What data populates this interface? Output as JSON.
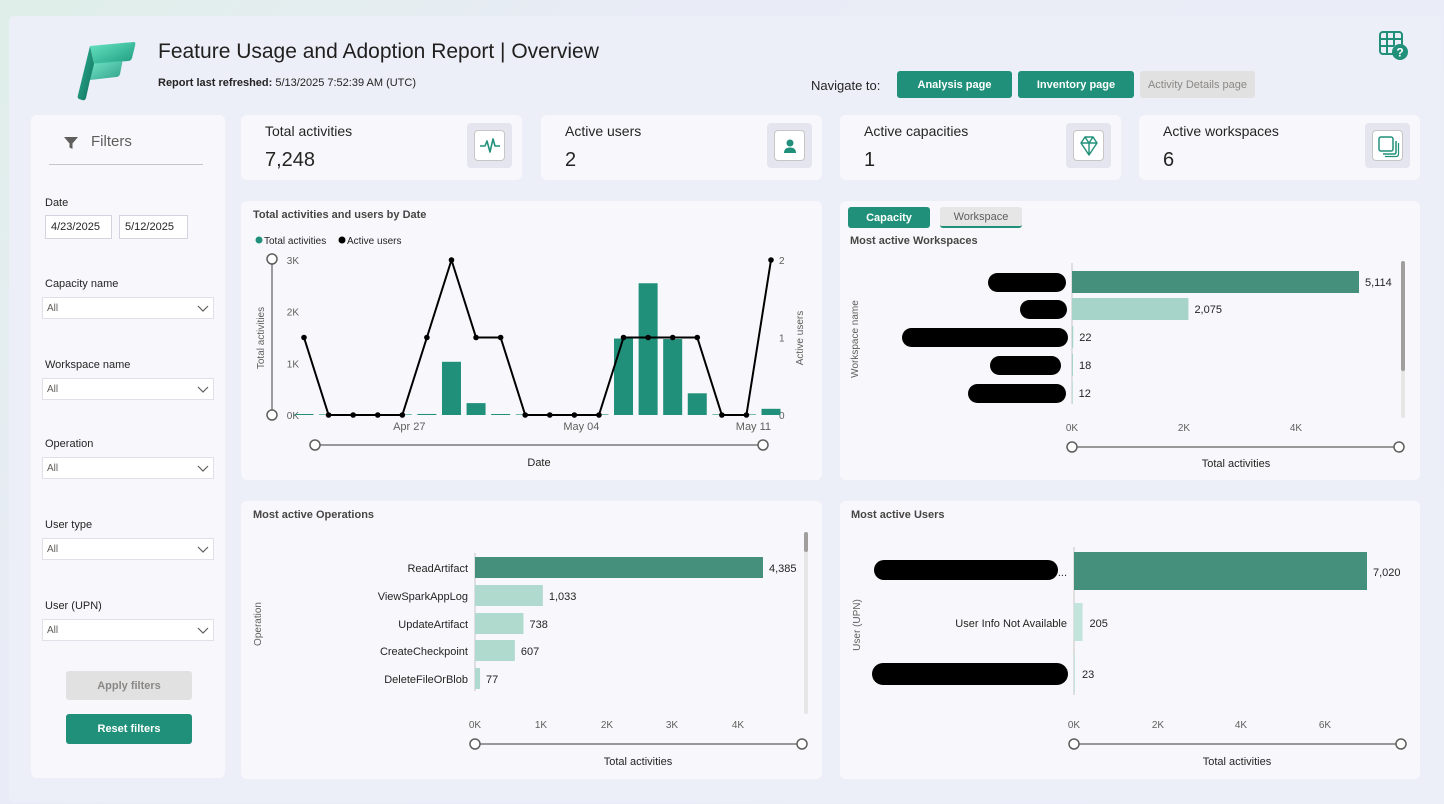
{
  "header": {
    "title": "Feature Usage and Adoption Report | Overview",
    "refresh_label": "Report last refreshed:",
    "refresh_value": "5/13/2025 7:52:39 AM (UTC)"
  },
  "nav": {
    "label": "Navigate to:",
    "buttons": [
      "Analysis page",
      "Inventory page",
      "Activity Details page"
    ]
  },
  "filters": {
    "title": "Filters",
    "date_label": "Date",
    "date_start": "4/23/2025",
    "date_end": "5/12/2025",
    "dropdowns": [
      {
        "label": "Capacity name",
        "value": "All"
      },
      {
        "label": "Workspace name",
        "value": "All"
      },
      {
        "label": "Operation",
        "value": "All"
      },
      {
        "label": "User type",
        "value": "All"
      },
      {
        "label": "User (UPN)",
        "value": "All"
      }
    ],
    "apply_label": "Apply filters",
    "reset_label": "Reset filters"
  },
  "kpis": [
    {
      "label": "Total activities",
      "value": "7,248",
      "icon": "pulse-icon"
    },
    {
      "label": "Active users",
      "value": "2",
      "icon": "user-icon"
    },
    {
      "label": "Active capacities",
      "value": "1",
      "icon": "diamond-icon"
    },
    {
      "label": "Active workspaces",
      "value": "6",
      "icon": "workspaces-icon"
    }
  ],
  "colors": {
    "accent": "#20907a",
    "bar_dark": "#44907d",
    "bar_light": "#a7d4c8",
    "line": "#000000"
  },
  "chart_data": [
    {
      "type": "bar+line",
      "title": "Total activities and users by Date",
      "legend": [
        "Total activities",
        "Active users"
      ],
      "xlabel": "Date",
      "ylabel": "Total activities",
      "y2label": "Active users",
      "x_ticks": [
        "Apr 27",
        "May 04",
        "May 11"
      ],
      "y_ticks": [
        "0K",
        "1K",
        "2K",
        "3K"
      ],
      "y2_ticks": [
        "0",
        "1",
        "2"
      ],
      "ylim": [
        0,
        3000
      ],
      "y2lim": [
        0,
        2
      ],
      "x": [
        "4/23",
        "4/24",
        "4/25",
        "4/26",
        "4/27",
        "4/28",
        "4/29",
        "4/30",
        "5/01",
        "5/02",
        "5/03",
        "5/04",
        "5/05",
        "5/06",
        "5/07",
        "5/08",
        "5/09",
        "5/10",
        "5/11",
        "5/12"
      ],
      "series": [
        {
          "name": "Total activities",
          "values": [
            5,
            0,
            0,
            0,
            0,
            20,
            1030,
            230,
            10,
            0,
            0,
            0,
            0,
            1480,
            2550,
            1470,
            420,
            0,
            0,
            120
          ]
        },
        {
          "name": "Active users",
          "values": [
            1,
            0,
            0,
            0,
            0,
            1,
            2,
            1,
            1,
            0,
            0,
            0,
            0,
            1,
            1,
            1,
            1,
            0,
            0,
            2
          ]
        }
      ]
    },
    {
      "type": "bar",
      "title": "Most active Workspaces",
      "tabs": [
        "Capacity",
        "Workspace"
      ],
      "ylabel": "Workspace name",
      "xlabel": "Total activities",
      "x_ticks": [
        "0K",
        "2K",
        "4K"
      ],
      "xlim": [
        0,
        5500
      ],
      "values": [
        5114,
        2075,
        22,
        18,
        12
      ],
      "value_labels": [
        "5,114",
        "2,075",
        "22",
        "18",
        "12"
      ]
    },
    {
      "type": "bar",
      "title": "Most active Operations",
      "ylabel": "Operation",
      "xlabel": "Total activities",
      "x_ticks": [
        "0K",
        "1K",
        "2K",
        "3K",
        "4K"
      ],
      "xlim": [
        0,
        4400
      ],
      "categories": [
        "ReadArtifact",
        "ViewSparkAppLog",
        "UpdateArtifact",
        "CreateCheckpoint",
        "DeleteFileOrBlob"
      ],
      "values": [
        4385,
        1033,
        738,
        607,
        77
      ],
      "value_labels": [
        "4,385",
        "1,033",
        "738",
        "607",
        "77"
      ]
    },
    {
      "type": "bar",
      "title": "Most active Users",
      "ylabel": "User (UPN)",
      "xlabel": "Total activities",
      "x_ticks": [
        "0K",
        "2K",
        "4K",
        "6K"
      ],
      "xlim": [
        0,
        7000
      ],
      "categories": [
        "...",
        "User Info Not Available",
        ""
      ],
      "values": [
        7020,
        205,
        23
      ],
      "value_labels": [
        "7,020",
        "205",
        "23"
      ]
    }
  ]
}
